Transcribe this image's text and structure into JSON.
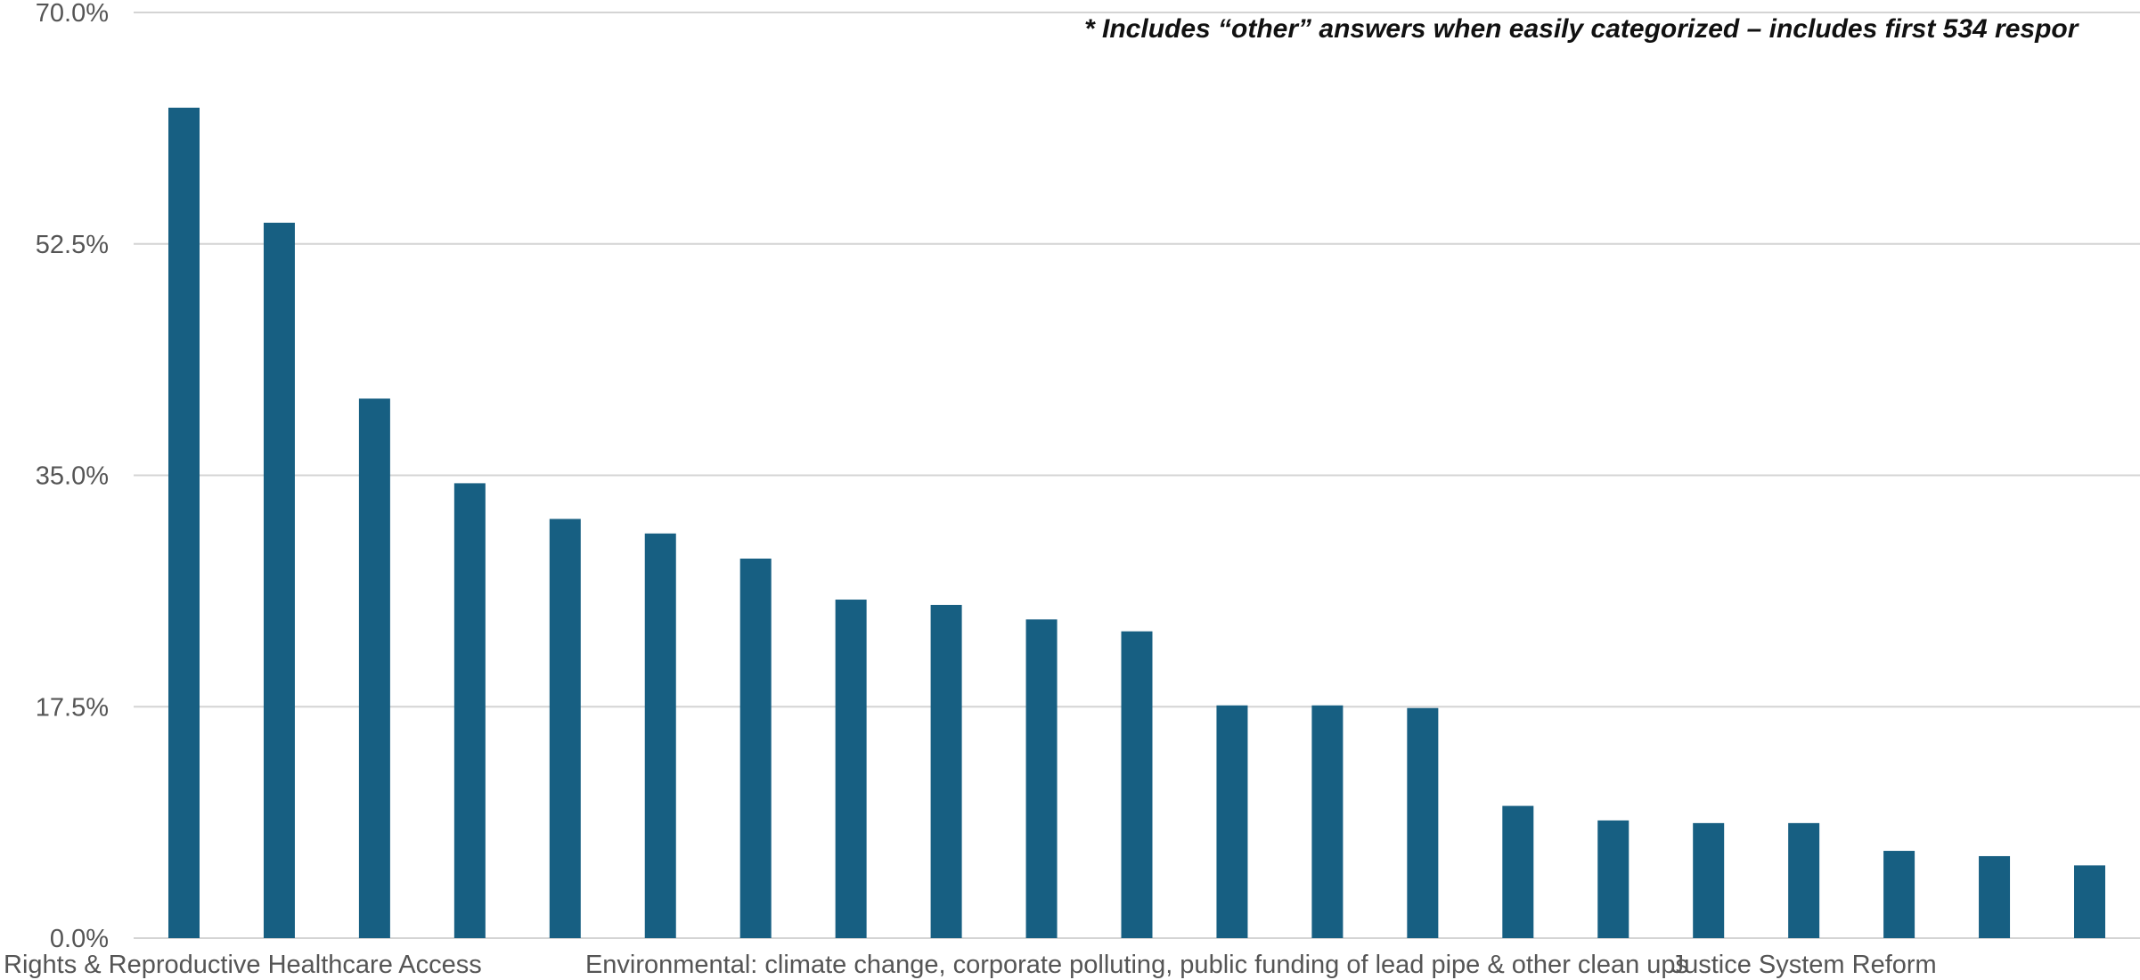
{
  "chart_data": {
    "type": "bar",
    "annotation": "* Includes “other” answers when easily categorized – includes first 534 respor",
    "ylim": [
      0,
      70
    ],
    "yticks": [
      "0.0%",
      "17.5%",
      "35.0%",
      "52.5%",
      "70.0%"
    ],
    "ytick_values": [
      0,
      17.5,
      35,
      52.5,
      70
    ],
    "grid": true,
    "categories": [
      "Rights & Reproductive Healthcare Access",
      "",
      "",
      "",
      "",
      "",
      "",
      "",
      "",
      "",
      "Environmental: climate change, corporate polluting, public funding of lead pipe & other clean ups",
      "",
      "",
      "",
      "",
      "",
      "",
      "Justice System Reform",
      "",
      "",
      ""
    ],
    "values": [
      62.8,
      54.1,
      40.8,
      34.4,
      31.7,
      30.6,
      28.7,
      25.6,
      25.2,
      24.1,
      23.2,
      17.6,
      17.6,
      17.4,
      10.0,
      8.9,
      8.7,
      8.7,
      6.6,
      6.2,
      5.5
    ],
    "colors": {
      "bar": "#175f82"
    }
  }
}
